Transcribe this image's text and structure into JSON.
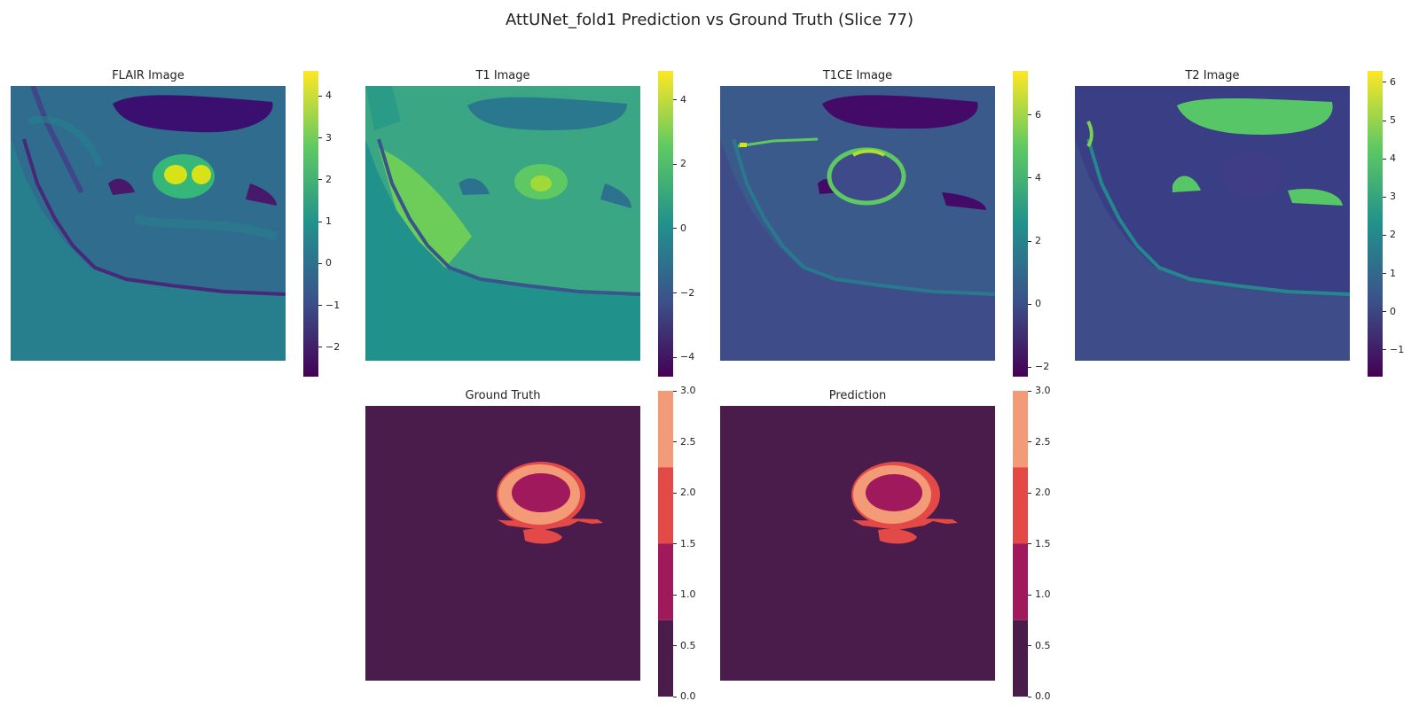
{
  "suptitle": "AttUNet_fold1 Prediction vs Ground Truth (Slice 77)",
  "chart_data": [
    {
      "type": "heatmap",
      "title": "FLAIR Image",
      "colormap": "viridis",
      "colorbar": {
        "range": [
          -2.7,
          4.6
        ],
        "ticks": [
          -2,
          -1,
          0,
          1,
          2,
          3,
          4
        ],
        "labels": [
          "−2",
          "−1",
          "0",
          "1",
          "2",
          "3",
          "4"
        ]
      },
      "background_value": 0.3
    },
    {
      "type": "heatmap",
      "title": "T1 Image",
      "colormap": "viridis",
      "colorbar": {
        "range": [
          -4.6,
          4.9
        ],
        "ticks": [
          -4,
          -2,
          0,
          2,
          4
        ],
        "labels": [
          "−4",
          "−2",
          "0",
          "2",
          "4"
        ]
      },
      "background_value": 0.0
    },
    {
      "type": "heatmap",
      "title": "T1CE Image",
      "colormap": "viridis",
      "colorbar": {
        "range": [
          -2.3,
          7.4
        ],
        "ticks": [
          -2,
          0,
          2,
          4,
          6
        ],
        "labels": [
          "−2",
          "0",
          "2",
          "4",
          "6"
        ]
      },
      "background_value": 0.0
    },
    {
      "type": "heatmap",
      "title": "T2 Image",
      "colormap": "viridis",
      "colorbar": {
        "range": [
          -1.7,
          6.3
        ],
        "ticks": [
          -1,
          0,
          1,
          2,
          3,
          4,
          5,
          6
        ],
        "labels": [
          "−1",
          "0",
          "1",
          "2",
          "3",
          "4",
          "5",
          "6"
        ]
      },
      "background_value": 0.0
    },
    {
      "type": "heatmap",
      "title": "Ground Truth",
      "colormap": "rocket (discrete, 4 classes)",
      "classes": [
        0,
        1,
        2,
        3
      ],
      "colorbar": {
        "range": [
          0,
          3
        ],
        "ticks": [
          0,
          0.5,
          1,
          1.5,
          2,
          2.5,
          3
        ],
        "labels": [
          "0.0",
          "0.5",
          "1.0",
          "1.5",
          "2.0",
          "2.5",
          "3.0"
        ]
      }
    },
    {
      "type": "heatmap",
      "title": "Prediction",
      "colormap": "rocket (discrete, 4 classes)",
      "classes": [
        0,
        1,
        2,
        3
      ],
      "colorbar": {
        "range": [
          0,
          3
        ],
        "ticks": [
          0,
          0.5,
          1,
          1.5,
          2,
          2.5,
          3
        ],
        "labels": [
          "0.0",
          "0.5",
          "1.0",
          "1.5",
          "2.0",
          "2.5",
          "3.0"
        ]
      }
    }
  ],
  "colors": {
    "viridis_low": "#440154",
    "viridis_mid_low": "#3b528b",
    "viridis_mid": "#21918c",
    "viridis_mid_high": "#5ec962",
    "viridis_high": "#fde725",
    "seg_class_0": "#4a1c4b",
    "seg_class_1": "#a1195d",
    "seg_class_2": "#e34a47",
    "seg_class_3": "#f39b77"
  }
}
